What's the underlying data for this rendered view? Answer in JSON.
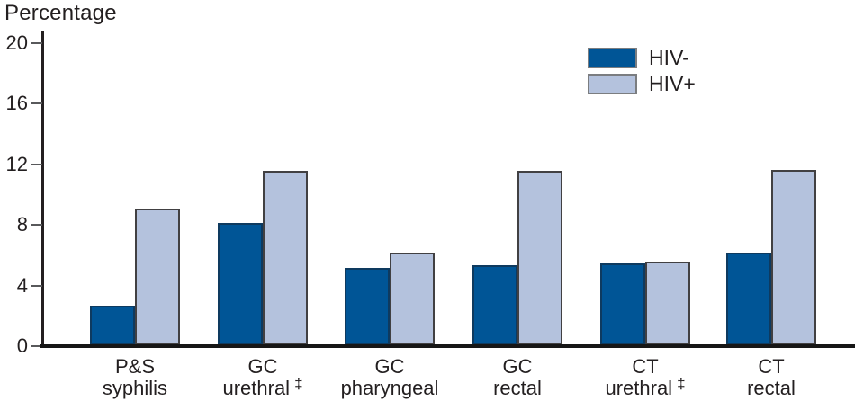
{
  "title": "Percentage",
  "colors": {
    "hiv_negative_fill": "#005596",
    "hiv_negative_border": "#0e3a5f",
    "hiv_positive_fill": "#b4c2dd",
    "hiv_positive_border": "#414042",
    "axis_line": "#231f20",
    "baseline": "#161616",
    "tick": "#58595b",
    "text": "#231f20",
    "legend_border": "#7b7d80",
    "background": "#ffffff"
  },
  "legend": {
    "position": "top-right",
    "items": [
      {
        "label": "HIV-",
        "series": "hiv-negative"
      },
      {
        "label": "HIV+",
        "series": "hiv-positive"
      }
    ]
  },
  "chart_data": {
    "type": "bar",
    "title": "",
    "xlabel": "",
    "ylabel": "Percentage",
    "ylim": [
      0,
      20
    ],
    "yticks": [
      0,
      4,
      8,
      12,
      16,
      20
    ],
    "grid": false,
    "legend_position": "top-right",
    "categories": [
      {
        "line1": "P&S",
        "line2": "syphilis",
        "footnote": ""
      },
      {
        "line1": "GC",
        "line2": "urethral",
        "footnote": "‡"
      },
      {
        "line1": "GC",
        "line2": "pharyngeal",
        "footnote": ""
      },
      {
        "line1": "GC",
        "line2": "rectal",
        "footnote": ""
      },
      {
        "line1": "CT",
        "line2": "urethral",
        "footnote": "‡"
      },
      {
        "line1": "CT",
        "line2": "rectal",
        "footnote": ""
      }
    ],
    "series": [
      {
        "name": "HIV-",
        "fill": "#005596",
        "border": "#0e3a5f",
        "values": [
          2.6,
          8.1,
          5.1,
          5.3,
          5.4,
          6.1
        ]
      },
      {
        "name": "HIV+",
        "fill": "#b4c2dd",
        "border": "#414042",
        "values": [
          9.0,
          11.5,
          6.1,
          11.5,
          5.5,
          11.6
        ]
      }
    ]
  }
}
